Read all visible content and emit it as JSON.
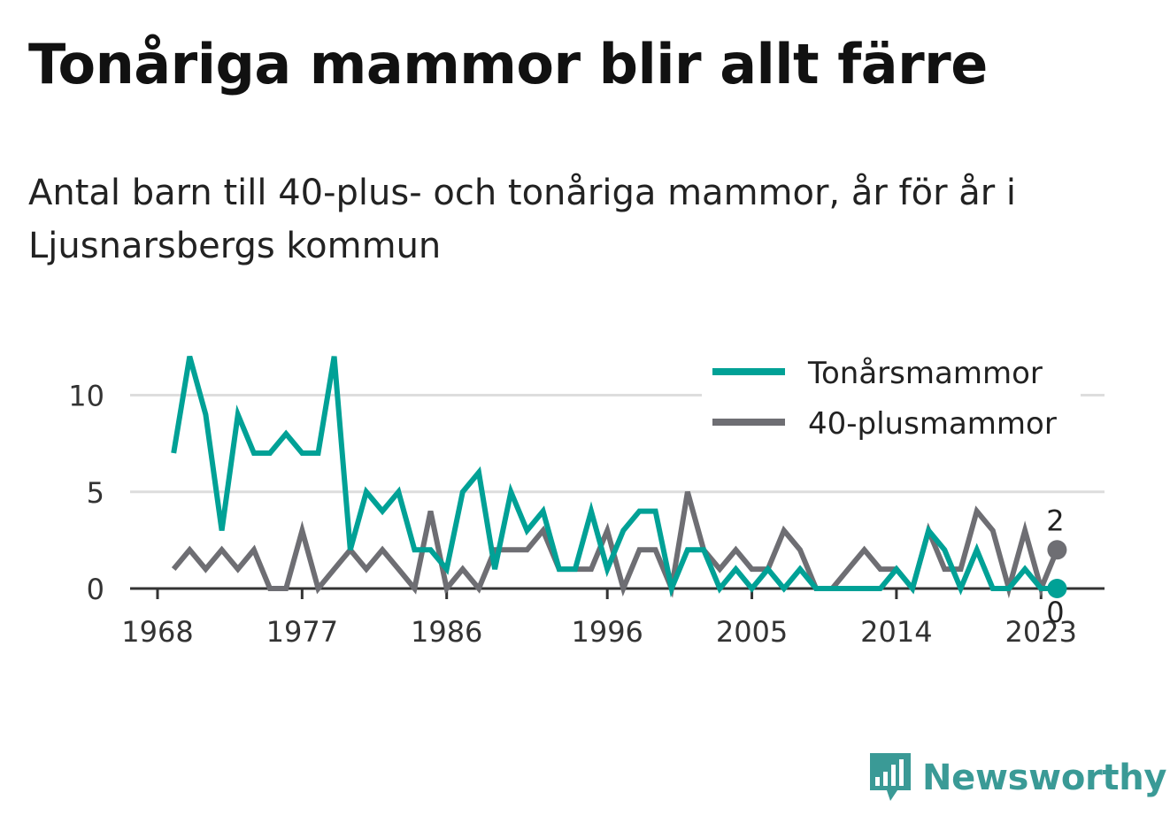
{
  "title": "Tonåriga mammor blir allt färre",
  "subtitle": "Antal barn till 40-plus- och tonåriga mammor, år för år i Ljusnarsbergs kommun",
  "brand": {
    "name": "Newsworthy",
    "icon": "newsworthy-bar-chart-icon"
  },
  "colors": {
    "teen": "#00a196",
    "plus40": "#6e6e73",
    "axis": "#333333",
    "grid": "#dddddd",
    "brand": "#3a9a96"
  },
  "chart_data": {
    "type": "line",
    "title": "Tonåriga mammor blir allt färre",
    "xlabel": "",
    "ylabel": "",
    "xlim": [
      1967,
      2027
    ],
    "ylim": [
      0,
      12.5
    ],
    "grid": true,
    "legend": "top-right",
    "xticks": [
      1968,
      1977,
      1986,
      1996,
      2005,
      2014,
      2023
    ],
    "yticks": [
      0,
      5,
      10
    ],
    "x": [
      1969,
      1970,
      1971,
      1972,
      1973,
      1974,
      1975,
      1976,
      1977,
      1978,
      1979,
      1980,
      1981,
      1982,
      1983,
      1984,
      1985,
      1986,
      1987,
      1988,
      1989,
      1990,
      1991,
      1992,
      1993,
      1994,
      1995,
      1996,
      1997,
      1998,
      1999,
      2000,
      2001,
      2002,
      2003,
      2004,
      2005,
      2006,
      2007,
      2008,
      2009,
      2010,
      2011,
      2012,
      2013,
      2014,
      2015,
      2016,
      2017,
      2018,
      2019,
      2020,
      2021,
      2022,
      2023,
      2024
    ],
    "series": [
      {
        "name": "Tonårsmammor",
        "color": "#00a196",
        "values": [
          7,
          12,
          9,
          3,
          9,
          7,
          7,
          8,
          7,
          7,
          12,
          2,
          5,
          4,
          5,
          2,
          2,
          1,
          5,
          6,
          1,
          5,
          3,
          4,
          1,
          1,
          4,
          1,
          3,
          4,
          4,
          0,
          2,
          2,
          0,
          1,
          0,
          1,
          0,
          1,
          0,
          0,
          0,
          0,
          0,
          1,
          0,
          3,
          2,
          0,
          2,
          0,
          0,
          1,
          0,
          0
        ],
        "last_label": "0"
      },
      {
        "name": "40-plusmammor",
        "color": "#6e6e73",
        "values": [
          1,
          2,
          1,
          2,
          1,
          2,
          0,
          0,
          3,
          0,
          1,
          2,
          1,
          2,
          1,
          0,
          4,
          0,
          1,
          0,
          2,
          2,
          2,
          3,
          1,
          1,
          1,
          3,
          0,
          2,
          2,
          0,
          5,
          2,
          1,
          2,
          1,
          1,
          3,
          2,
          0,
          0,
          1,
          2,
          1,
          1,
          0,
          3,
          1,
          1,
          4,
          3,
          0,
          3,
          0,
          2
        ],
        "last_label": "2"
      }
    ]
  }
}
